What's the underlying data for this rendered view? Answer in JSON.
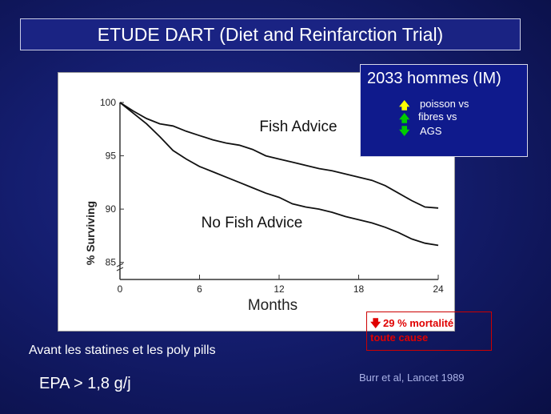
{
  "slide": {
    "title": "ETUDE DART (Diet and Reinfarction Trial)",
    "info_box": {
      "title": "2033 hommes (IM)",
      "rows": [
        {
          "icon": "arrow-up-icon",
          "icon_color": "#ffff00",
          "text": "poisson vs"
        },
        {
          "icon": "arrow-up-icon",
          "icon_color": "#00cc00",
          "text": "fibres vs"
        },
        {
          "icon": "arrow-down-icon",
          "icon_color": "#00cc00",
          "text": "AGS"
        }
      ]
    },
    "mortality_box": {
      "icon": "arrow-down-icon",
      "line1": "29 % mortalité",
      "line2": "toute cause",
      "color": "#e00000"
    },
    "statins_note": "Avant les statines et les poly pills",
    "epa_note": "EPA > 1,8 g/j",
    "citation": "Burr et al, Lancet 1989"
  },
  "chart_data": {
    "type": "line",
    "xlabel": "Months",
    "ylabel": "% Surviving",
    "x_ticks": [
      "0",
      "6",
      "12",
      "18",
      "24"
    ],
    "y_ticks": [
      "100",
      "95",
      "90",
      "85"
    ],
    "xlim": [
      0,
      24
    ],
    "ylim": [
      84,
      100
    ],
    "series": [
      {
        "name": "Fish Advice",
        "x": [
          0,
          1,
          2,
          3,
          4,
          5,
          6,
          7,
          8,
          9,
          10,
          11,
          12,
          13,
          14,
          15,
          16,
          17,
          18,
          19,
          20,
          21,
          22,
          23,
          24
        ],
        "y": [
          100,
          99.2,
          98.5,
          98.0,
          97.8,
          97.3,
          96.9,
          96.5,
          96.2,
          96.0,
          95.6,
          95.0,
          94.7,
          94.4,
          94.1,
          93.8,
          93.6,
          93.3,
          93.0,
          92.7,
          92.2,
          91.5,
          90.8,
          90.2,
          90.1
        ]
      },
      {
        "name": "No Fish Advice",
        "x": [
          0,
          1,
          2,
          3,
          4,
          5,
          6,
          7,
          8,
          9,
          10,
          11,
          12,
          13,
          14,
          15,
          16,
          17,
          18,
          19,
          20,
          21,
          22,
          23,
          24
        ],
        "y": [
          100,
          99.0,
          98.0,
          96.8,
          95.5,
          94.7,
          94.0,
          93.5,
          93.0,
          92.5,
          92.0,
          91.5,
          91.1,
          90.5,
          90.2,
          90.0,
          89.7,
          89.3,
          89.0,
          88.7,
          88.3,
          87.8,
          87.2,
          86.8,
          86.6
        ]
      }
    ],
    "grid": false
  }
}
